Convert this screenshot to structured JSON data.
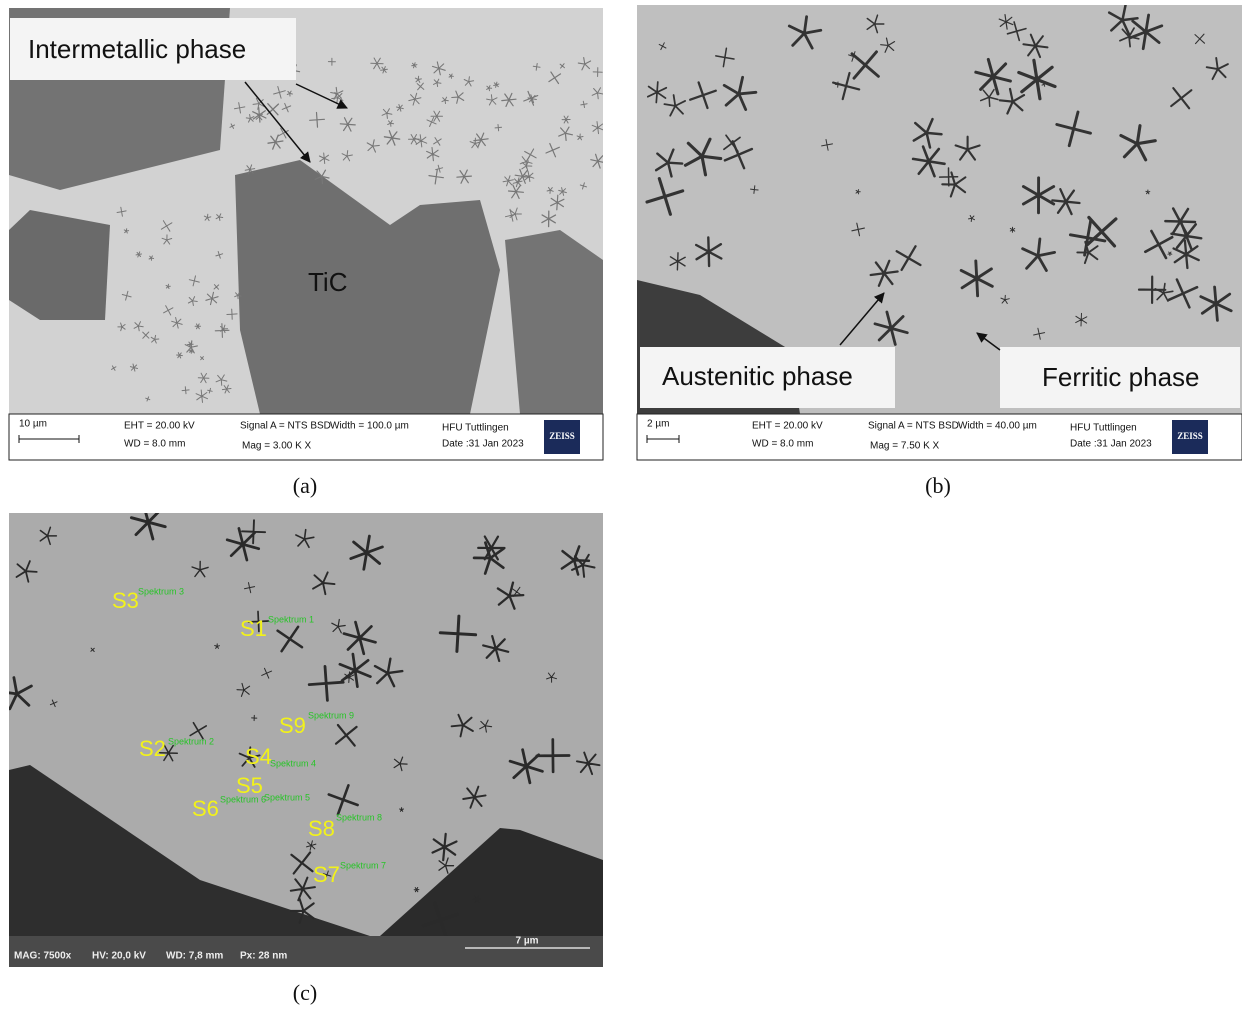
{
  "panels": [
    {
      "caption": "(a)",
      "annotations": [
        "Intermetallic phase",
        "TiC"
      ],
      "info_bar": {
        "scale": "10 µm",
        "eht": "EHT = 20.00 kV",
        "wd": "WD = 8.0 mm",
        "signal": "Signal A = NTS BSD",
        "width": "Width = 100.0 µm",
        "mag": "Mag = 3.00 K X",
        "lab": "HFU Tuttlingen",
        "date": "Date :31 Jan 2023",
        "logo": "ZEISS"
      }
    },
    {
      "caption": "(b)",
      "annotations": [
        "Austenitic phase",
        "Ferritic phase"
      ],
      "info_bar": {
        "scale": "2 µm",
        "eht": "EHT = 20.00 kV",
        "wd": "WD = 8.0 mm",
        "signal": "Signal A = NTS BSD",
        "width": "Width = 40.00 µm",
        "mag": "Mag = 7.50 K X",
        "lab": "HFU Tuttlingen",
        "date": "Date :31 Jan 2023",
        "logo": "ZEISS"
      }
    },
    {
      "caption": "(c)",
      "spectra": [
        {
          "label": "S3",
          "spectrum": "Spektrum 3"
        },
        {
          "label": "S1",
          "spectrum": "Spektrum 1"
        },
        {
          "label": "S9",
          "spectrum": "Spektrum 9"
        },
        {
          "label": "S2",
          "spectrum": "Spektrum 2"
        },
        {
          "label": "S4",
          "spectrum": "Spektrum 4"
        },
        {
          "label": "S5",
          "spectrum": "Spektrum 5"
        },
        {
          "label": "S6",
          "spectrum": "Spektrum 6"
        },
        {
          "label": "S8",
          "spectrum": "Spektrum 8"
        },
        {
          "label": "S7",
          "spectrum": "Spektrum 7"
        }
      ],
      "info_bar": {
        "mag": "MAG: 7500x",
        "hv": "HV: 20,0 kV",
        "wd": "WD: 7,8 mm",
        "px": "Px: 28 nm",
        "scale": "7 µm"
      }
    }
  ]
}
